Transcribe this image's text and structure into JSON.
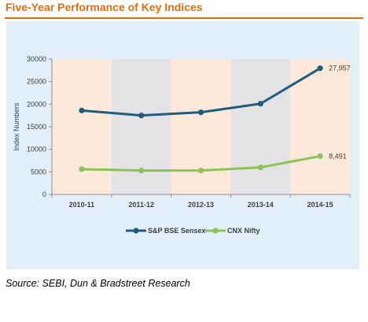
{
  "title": "Five-Year Performance of Key Indices",
  "source": "Source: SEBI, Dun & Bradstreet Research",
  "colors": {
    "title": "#e36c0a",
    "frame_bg": "#e2eef8",
    "band_peach": "#fce9da",
    "band_gray": "#e3e3e5",
    "sensex": "#1f5c7d",
    "nifty": "#8dc257"
  },
  "chart_data": {
    "type": "line",
    "categories": [
      "2010-11",
      "2011-12",
      "2012-13",
      "2013-14",
      "2014-15"
    ],
    "series": [
      {
        "name": "S&P BSE Sensex",
        "values": [
          18600,
          17500,
          18200,
          20100,
          27957
        ],
        "end_label": "27,957"
      },
      {
        "name": "CNX Nifty",
        "values": [
          5600,
          5300,
          5300,
          6000,
          8491
        ],
        "end_label": "8,491"
      }
    ],
    "xlabel": "",
    "ylabel": "Index Numbers",
    "ylim": [
      0,
      30000
    ],
    "yticks": [
      "0",
      "5000",
      "10000",
      "15000",
      "20000",
      "25000",
      "30000"
    ],
    "grid": false,
    "legend": "bottom"
  }
}
